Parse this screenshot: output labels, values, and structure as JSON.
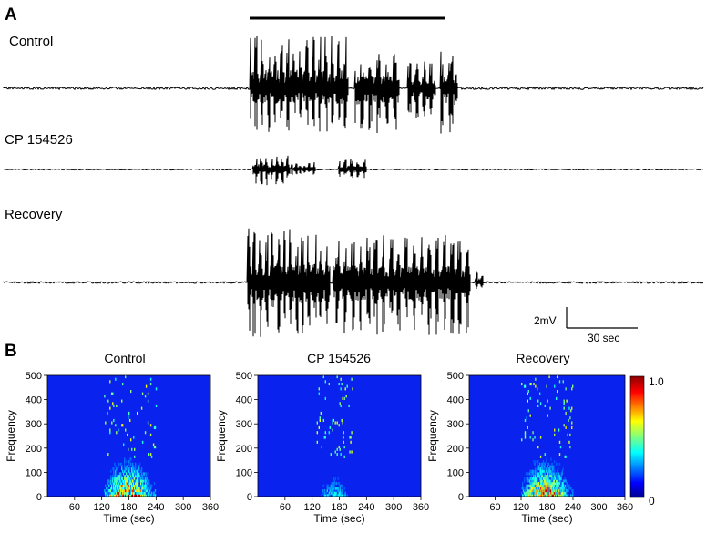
{
  "panel_a": {
    "letter": "A",
    "traces": [
      {
        "label": "Control"
      },
      {
        "label": "CP 154526"
      },
      {
        "label": "Recovery"
      }
    ],
    "scale_bar": {
      "voltage_label": "2mV",
      "time_label": "30 sec"
    }
  },
  "panel_b": {
    "letter": "B",
    "colorbar": {
      "max_label": "1.0",
      "min_label": "0"
    }
  },
  "chart_data": [
    {
      "type": "heatmap",
      "title": "Control",
      "xlabel": "Time (sec)",
      "ylabel": "Frequency",
      "xlim": [
        0,
        360
      ],
      "ylim": [
        0,
        500
      ],
      "xticks": [
        60,
        120,
        180,
        240,
        300,
        360
      ],
      "yticks": [
        0,
        100,
        200,
        300,
        400,
        500
      ],
      "activity_window_sec": [
        125,
        240
      ],
      "peak_intensity": 1.0
    },
    {
      "type": "heatmap",
      "title": "CP 154526",
      "xlabel": "Time (sec)",
      "ylabel": "Frequency",
      "xlim": [
        0,
        360
      ],
      "ylim": [
        0,
        500
      ],
      "xticks": [
        60,
        120,
        180,
        240,
        300,
        360
      ],
      "yticks": [
        0,
        100,
        200,
        300,
        400,
        500
      ],
      "activity_window_sec": [
        130,
        210
      ],
      "peak_intensity": 0.4
    },
    {
      "type": "heatmap",
      "title": "Recovery",
      "xlabel": "Time (sec)",
      "ylabel": "Frequency",
      "xlim": [
        0,
        360
      ],
      "ylim": [
        0,
        500
      ],
      "xticks": [
        60,
        120,
        180,
        240,
        300,
        360
      ],
      "yticks": [
        0,
        100,
        200,
        300,
        400,
        500
      ],
      "activity_window_sec": [
        120,
        240
      ],
      "peak_intensity": 1.0
    }
  ]
}
